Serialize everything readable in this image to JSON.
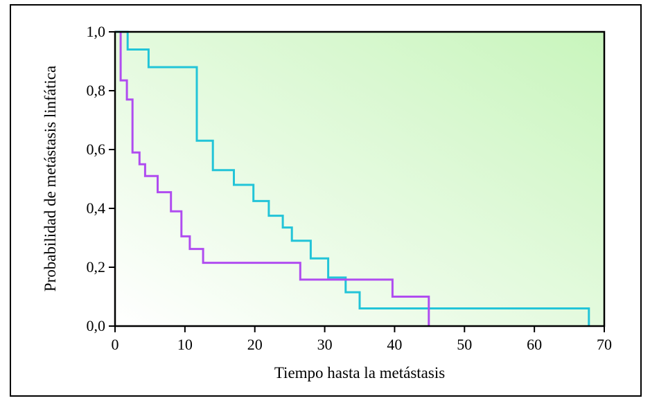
{
  "chart_data": {
    "type": "line",
    "step": true,
    "title": "",
    "xlabel": "Tiempo hasta la metástasis",
    "ylabel": "Probabilidad de metástasis linfática",
    "xlim": [
      0,
      70
    ],
    "ylim": [
      0,
      1
    ],
    "x_ticks": [
      0,
      10,
      20,
      30,
      40,
      50,
      60,
      70
    ],
    "x_tick_labels": [
      "0",
      "10",
      "20",
      "30",
      "40",
      "50",
      "60",
      "70"
    ],
    "y_ticks": [
      0,
      0.2,
      0.4,
      0.6,
      0.8,
      1.0
    ],
    "y_tick_labels": [
      "0,0",
      "0,2",
      "0,4",
      "0,6",
      "0,8",
      "1,0"
    ],
    "grid": false,
    "legend": "none",
    "background_gradient": [
      "#c8f5bc",
      "#ffffff"
    ],
    "series": [
      {
        "color": "#22c4d8",
        "points": [
          [
            0,
            1.0
          ],
          [
            1.8,
            1.0
          ],
          [
            1.8,
            0.94
          ],
          [
            4.8,
            0.94
          ],
          [
            4.8,
            0.88
          ],
          [
            11.7,
            0.88
          ],
          [
            11.7,
            0.63
          ],
          [
            14.0,
            0.63
          ],
          [
            14.0,
            0.53
          ],
          [
            17.0,
            0.53
          ],
          [
            17.0,
            0.48
          ],
          [
            19.8,
            0.48
          ],
          [
            19.8,
            0.425
          ],
          [
            22.0,
            0.425
          ],
          [
            22.0,
            0.375
          ],
          [
            24.0,
            0.375
          ],
          [
            24.0,
            0.335
          ],
          [
            25.3,
            0.335
          ],
          [
            25.3,
            0.29
          ],
          [
            28.0,
            0.29
          ],
          [
            28.0,
            0.23
          ],
          [
            30.5,
            0.23
          ],
          [
            30.5,
            0.165
          ],
          [
            33.0,
            0.165
          ],
          [
            33.0,
            0.115
          ],
          [
            35.0,
            0.115
          ],
          [
            35.0,
            0.06
          ],
          [
            67.8,
            0.06
          ],
          [
            67.8,
            0.0
          ]
        ]
      },
      {
        "color": "#b04cf0",
        "points": [
          [
            0.8,
            1.0
          ],
          [
            0.8,
            0.835
          ],
          [
            1.7,
            0.835
          ],
          [
            1.7,
            0.77
          ],
          [
            2.5,
            0.77
          ],
          [
            2.5,
            0.59
          ],
          [
            3.5,
            0.59
          ],
          [
            3.5,
            0.55
          ],
          [
            4.3,
            0.55
          ],
          [
            4.3,
            0.51
          ],
          [
            6.1,
            0.51
          ],
          [
            6.1,
            0.455
          ],
          [
            8.0,
            0.455
          ],
          [
            8.0,
            0.39
          ],
          [
            9.5,
            0.39
          ],
          [
            9.5,
            0.305
          ],
          [
            10.7,
            0.305
          ],
          [
            10.7,
            0.262
          ],
          [
            12.6,
            0.262
          ],
          [
            12.6,
            0.215
          ],
          [
            26.5,
            0.215
          ],
          [
            26.5,
            0.158
          ],
          [
            39.7,
            0.158
          ],
          [
            39.7,
            0.1
          ],
          [
            44.9,
            0.1
          ],
          [
            44.9,
            0.0
          ]
        ]
      }
    ]
  }
}
